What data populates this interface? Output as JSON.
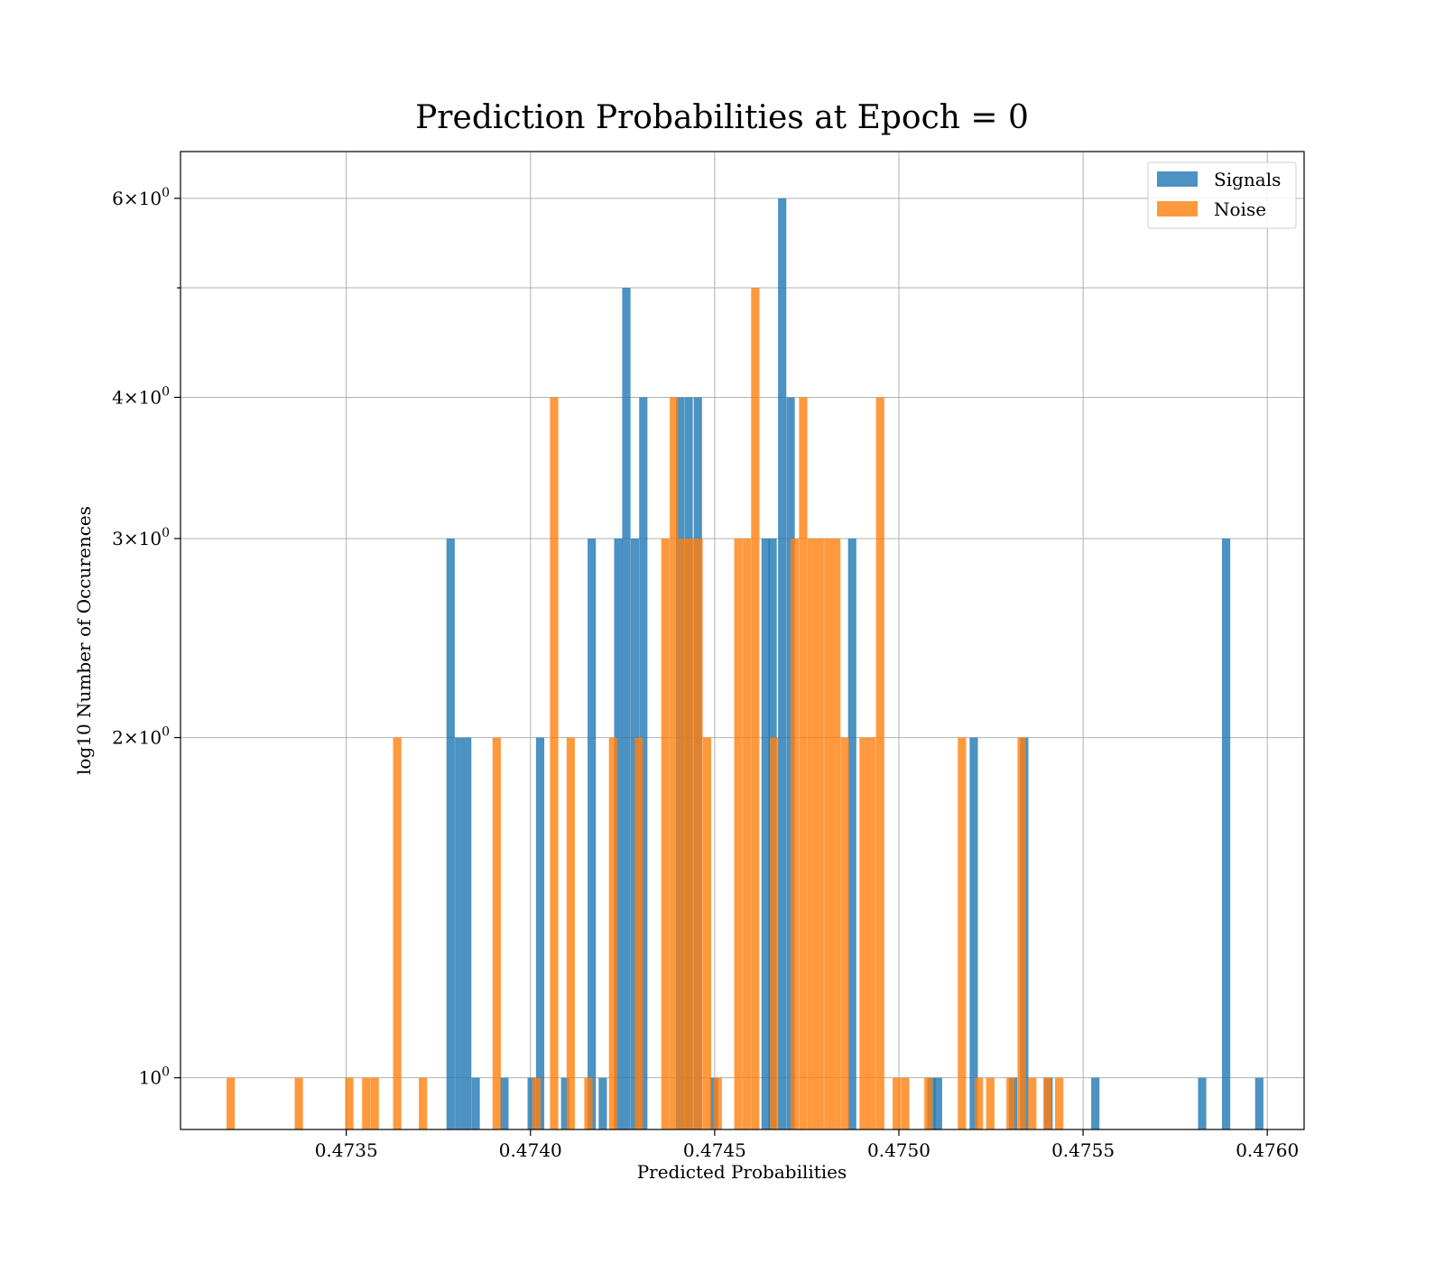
{
  "chart_data": {
    "type": "bar",
    "title": "Prediction Probabilities at Epoch = 0",
    "xlabel": "Predicted Probabilities",
    "ylabel": "log10 Number of Occurences",
    "xlim": [
      0.47305,
      0.4761
    ],
    "ylim": [
      0.9,
      6.6
    ],
    "yscale": "log",
    "grid": true,
    "legend_position": "top-right",
    "x_ticks": [
      "0.4735",
      "0.4740",
      "0.4745",
      "0.4750",
      "0.4755",
      "0.4760"
    ],
    "x_tick_values": [
      0.4735,
      0.474,
      0.4745,
      0.475,
      0.4755,
      0.476
    ],
    "y_ticks": [
      {
        "value": 1,
        "mantissa": "",
        "exponent": "0"
      },
      {
        "value": 2,
        "mantissa": "2",
        "exponent": "0"
      },
      {
        "value": 3,
        "mantissa": "3",
        "exponent": "0"
      },
      {
        "value": 4,
        "mantissa": "4",
        "exponent": "0"
      },
      {
        "value": 6,
        "mantissa": "6",
        "exponent": "0"
      }
    ],
    "y_minor_ticks": [
      5
    ],
    "series": [
      {
        "name": "Signals",
        "color": "#1f77b4",
        "bin_width": 2.25e-05,
        "x": [
          0.473772,
          0.473795,
          0.473817,
          0.47384,
          0.473918,
          0.473992,
          0.474015,
          0.474083,
          0.474155,
          0.474185,
          0.474227,
          0.474249,
          0.474272,
          0.474295,
          0.474395,
          0.474418,
          0.474443,
          0.474487,
          0.474627,
          0.474646,
          0.474672,
          0.474695,
          0.474862,
          0.475077,
          0.475095,
          0.475192,
          0.475299,
          0.475329,
          0.475395,
          0.475522,
          0.475812,
          0.475877,
          0.475967
        ],
        "values": [
          3,
          2,
          2,
          1,
          1,
          1,
          2,
          1,
          3,
          1,
          3,
          5,
          3,
          4,
          4,
          4,
          4,
          1,
          3,
          3,
          6,
          4,
          3,
          1,
          1,
          2,
          1,
          2,
          1,
          1,
          1,
          3,
          1
        ]
      },
      {
        "name": "Noise",
        "color": "#ff7f0e",
        "bin_width": 2.25e-05,
        "x": [
          0.473175,
          0.47336,
          0.473497,
          0.473543,
          0.473566,
          0.473627,
          0.473697,
          0.473897,
          0.474005,
          0.474053,
          0.474098,
          0.474146,
          0.474213,
          0.474283,
          0.474355,
          0.474378,
          0.474401,
          0.474423,
          0.474445,
          0.474468,
          0.474497,
          0.474553,
          0.474576,
          0.474599,
          0.47465,
          0.474706,
          0.474729,
          0.474752,
          0.474774,
          0.474797,
          0.474819,
          0.474842,
          0.474893,
          0.474915,
          0.474938,
          0.474983,
          0.475006,
          0.475069,
          0.47516,
          0.475206,
          0.475237,
          0.475292,
          0.475322,
          0.475351,
          0.475392,
          0.475424
        ],
        "values": [
          1,
          1,
          1,
          1,
          1,
          2,
          1,
          2,
          1,
          4,
          2,
          1,
          2,
          2,
          3,
          4,
          3,
          3,
          3,
          2,
          1,
          3,
          3,
          5,
          2,
          3,
          4,
          3,
          3,
          3,
          3,
          2,
          2,
          2,
          4,
          1,
          1,
          1,
          2,
          1,
          1,
          1,
          2,
          1,
          1,
          1
        ]
      }
    ]
  }
}
